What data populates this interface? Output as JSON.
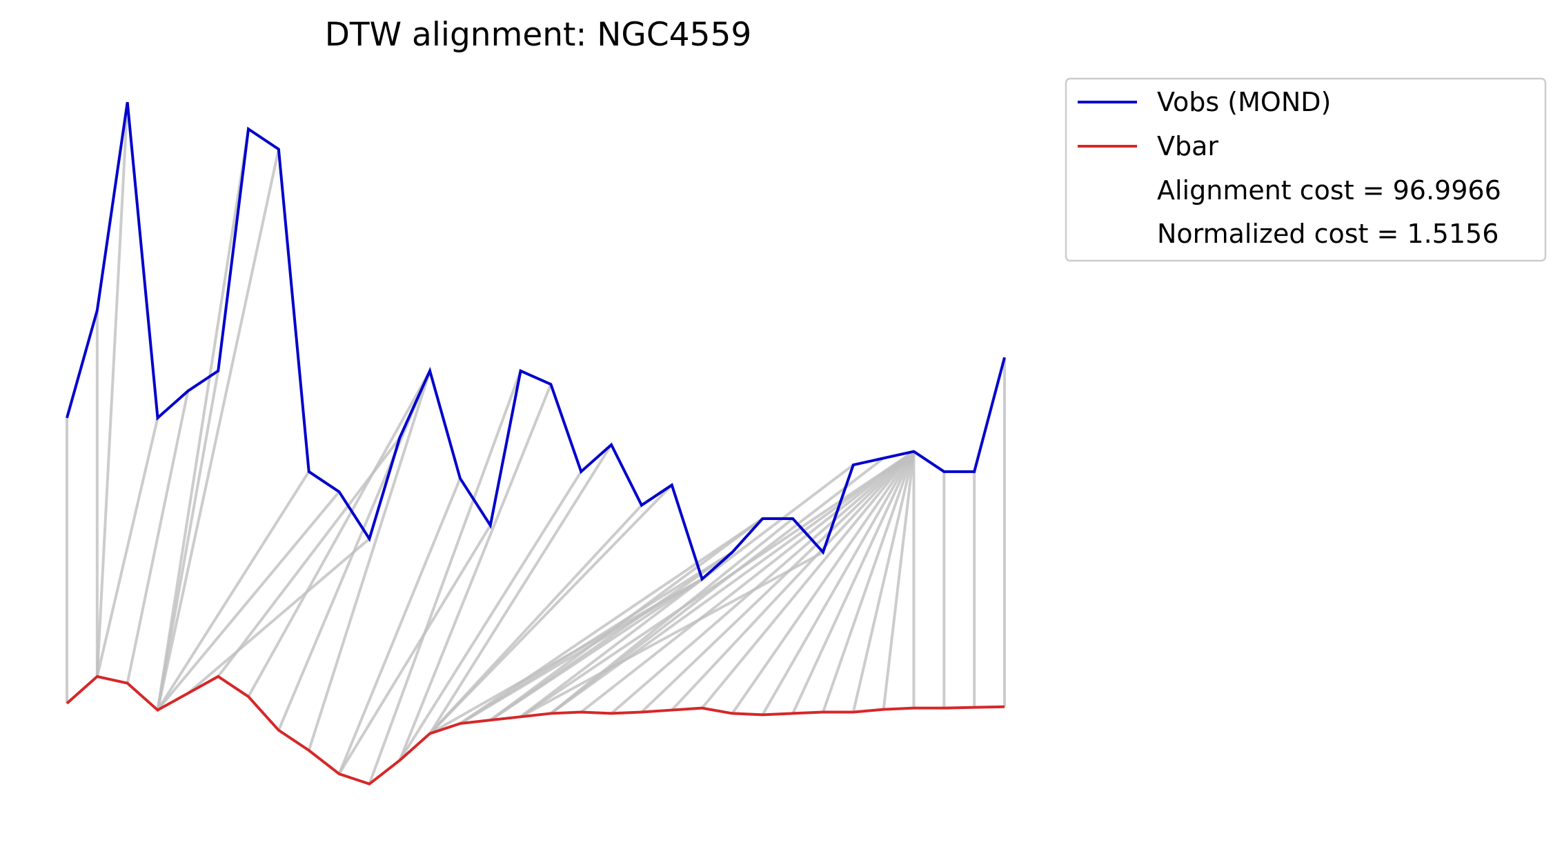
{
  "chart_data": {
    "type": "line",
    "title": "DTW alignment: NGC4559",
    "xlabel": "",
    "ylabel": "",
    "axes_visible": false,
    "grid": false,
    "legend_position": "outside-top-right",
    "x": [
      0,
      1,
      2,
      3,
      4,
      5,
      6,
      7,
      8,
      9,
      10,
      11,
      12,
      13,
      14,
      15,
      16,
      17,
      18,
      19,
      20,
      21,
      22,
      23,
      24,
      25,
      26,
      27,
      28,
      29,
      30,
      31
    ],
    "series": [
      {
        "name": "Vobs (MOND)",
        "color": "#0000cc",
        "values": [
          0.71,
          0.87,
          1.18,
          0.71,
          0.75,
          0.78,
          1.14,
          1.11,
          0.63,
          0.6,
          0.53,
          0.68,
          0.78,
          0.62,
          0.55,
          0.78,
          0.76,
          0.63,
          0.67,
          0.58,
          0.61,
          0.47,
          0.51,
          0.56,
          0.56,
          0.51,
          0.64,
          0.65,
          0.66,
          0.63,
          0.63,
          0.8
        ]
      },
      {
        "name": "Vbar",
        "color": "#d62728",
        "values": [
          0.285,
          0.325,
          0.315,
          0.275,
          0.3,
          0.325,
          0.295,
          0.245,
          0.215,
          0.18,
          0.165,
          0.2,
          0.24,
          0.255,
          0.26,
          0.265,
          0.27,
          0.272,
          0.27,
          0.272,
          0.275,
          0.278,
          0.27,
          0.268,
          0.27,
          0.272,
          0.272,
          0.276,
          0.278,
          0.278,
          0.279,
          0.28
        ]
      }
    ],
    "alignment_path": [
      [
        0,
        0
      ],
      [
        1,
        1
      ],
      [
        2,
        1
      ],
      [
        3,
        1
      ],
      [
        4,
        2
      ],
      [
        5,
        3
      ],
      [
        6,
        3
      ],
      [
        7,
        3
      ],
      [
        8,
        3
      ],
      [
        9,
        3
      ],
      [
        10,
        4
      ],
      [
        11,
        5
      ],
      [
        12,
        6
      ],
      [
        12,
        7
      ],
      [
        12,
        8
      ],
      [
        13,
        9
      ],
      [
        14,
        9
      ],
      [
        15,
        10
      ],
      [
        16,
        11
      ],
      [
        17,
        11
      ],
      [
        18,
        12
      ],
      [
        19,
        12
      ],
      [
        20,
        12
      ],
      [
        21,
        12
      ],
      [
        21,
        13
      ],
      [
        21,
        14
      ],
      [
        22,
        13
      ],
      [
        22,
        14
      ],
      [
        23,
        13
      ],
      [
        23,
        14
      ],
      [
        24,
        16
      ],
      [
        25,
        15
      ],
      [
        26,
        15
      ],
      [
        27,
        16
      ],
      [
        28,
        15
      ],
      [
        28,
        16
      ],
      [
        28,
        17
      ],
      [
        28,
        18
      ],
      [
        28,
        19
      ],
      [
        28,
        20
      ],
      [
        28,
        21
      ],
      [
        28,
        22
      ],
      [
        28,
        23
      ],
      [
        28,
        24
      ],
      [
        28,
        25
      ],
      [
        28,
        26
      ],
      [
        28,
        27
      ],
      [
        28,
        28
      ],
      [
        29,
        29
      ],
      [
        30,
        30
      ],
      [
        31,
        31
      ]
    ],
    "connector_color": "#bfbfbf",
    "annotations": [
      "Alignment cost = 96.9966",
      "Normalized cost = 1.5156"
    ]
  }
}
